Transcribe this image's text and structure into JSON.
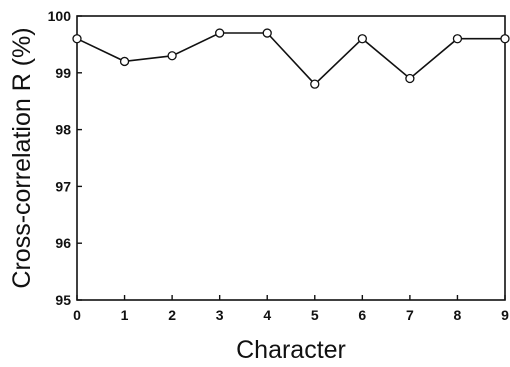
{
  "chart_data": {
    "type": "line",
    "xlabel": "Character",
    "ylabel": "Cross-correlation R (%)",
    "x": [
      0,
      1,
      2,
      3,
      4,
      5,
      6,
      7,
      8,
      9
    ],
    "series": [
      {
        "values": [
          99.6,
          99.2,
          99.3,
          99.7,
          99.7,
          98.8,
          99.6,
          98.9,
          99.6,
          99.6
        ]
      }
    ],
    "xlim": [
      0,
      9
    ],
    "ylim": [
      95,
      100
    ],
    "xticks": [
      "0",
      "1",
      "2",
      "3",
      "4",
      "5",
      "6",
      "7",
      "8",
      "9"
    ],
    "yticks": [
      "95",
      "96",
      "97",
      "98",
      "99",
      "100"
    ],
    "grid": false,
    "marker": "open-circle",
    "line_color": "#111111"
  }
}
